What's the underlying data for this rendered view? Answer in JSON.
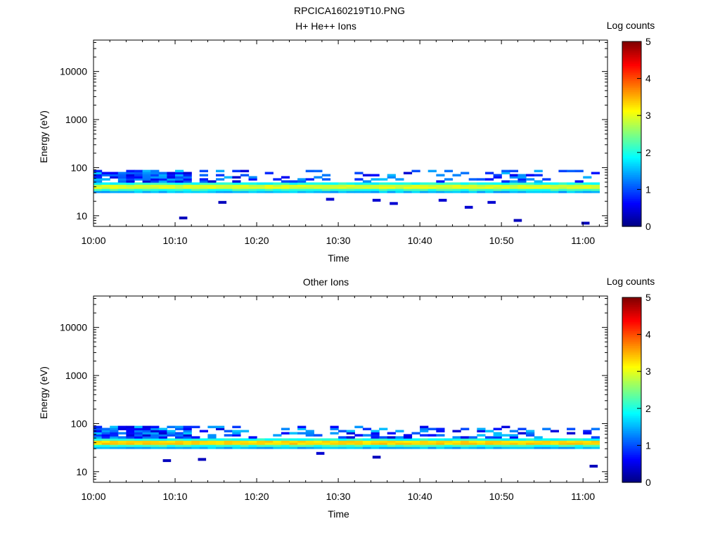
{
  "figure_title": "RPCICA160219T10.PNG",
  "chart_data": [
    {
      "type": "heatmap",
      "title": "H+ He++ Ions",
      "xlabel": "Time",
      "ylabel": "Energy (eV)",
      "y_scale": "log",
      "ylim": [
        6,
        45000
      ],
      "xlim_minutes": [
        0,
        63
      ],
      "x_ticks": [
        "10:00",
        "10:10",
        "10:20",
        "10:30",
        "10:40",
        "10:50",
        "11:00"
      ],
      "y_ticks": [
        "10",
        "100",
        "1000",
        "10000"
      ],
      "colorbar": {
        "label": "Log counts",
        "range": [
          0,
          5
        ],
        "ticks": [
          "0",
          "1",
          "2",
          "3",
          "4",
          "5"
        ]
      },
      "band": {
        "energy_center_eV": 40,
        "peak_log_counts": 3.0
      },
      "scattered_cells": [
        {
          "t": 10.5,
          "e": 9,
          "v": 0.3
        },
        {
          "t": 15.3,
          "e": 19,
          "v": 0.3
        },
        {
          "t": 28.5,
          "e": 22,
          "v": 0.4
        },
        {
          "t": 34.2,
          "e": 21,
          "v": 0.4
        },
        {
          "t": 36.3,
          "e": 18,
          "v": 0.4
        },
        {
          "t": 42.3,
          "e": 21,
          "v": 0.4
        },
        {
          "t": 45.5,
          "e": 15,
          "v": 0.4
        },
        {
          "t": 48.3,
          "e": 19,
          "v": 0.4
        },
        {
          "t": 51.5,
          "e": 8,
          "v": 0.3
        },
        {
          "t": 59.8,
          "e": 7,
          "v": 0.3
        }
      ]
    },
    {
      "type": "heatmap",
      "title": "Other Ions",
      "xlabel": "Time",
      "ylabel": "Energy (eV)",
      "y_scale": "log",
      "ylim": [
        6,
        45000
      ],
      "xlim_minutes": [
        0,
        63
      ],
      "x_ticks": [
        "10:00",
        "10:10",
        "10:20",
        "10:30",
        "10:40",
        "10:50",
        "11:00"
      ],
      "y_ticks": [
        "10",
        "100",
        "1000",
        "10000"
      ],
      "colorbar": {
        "label": "Log counts",
        "range": [
          0,
          5
        ],
        "ticks": [
          "0",
          "1",
          "2",
          "3",
          "4",
          "5"
        ]
      },
      "band": {
        "energy_center_eV": 40,
        "peak_log_counts": 3.4
      },
      "scattered_cells": [
        {
          "t": 8.5,
          "e": 17,
          "v": 0.3
        },
        {
          "t": 12.8,
          "e": 18,
          "v": 0.3
        },
        {
          "t": 27.3,
          "e": 24,
          "v": 0.4
        },
        {
          "t": 34.2,
          "e": 20,
          "v": 0.3
        },
        {
          "t": 60.8,
          "e": 13,
          "v": 0.3
        }
      ]
    }
  ]
}
